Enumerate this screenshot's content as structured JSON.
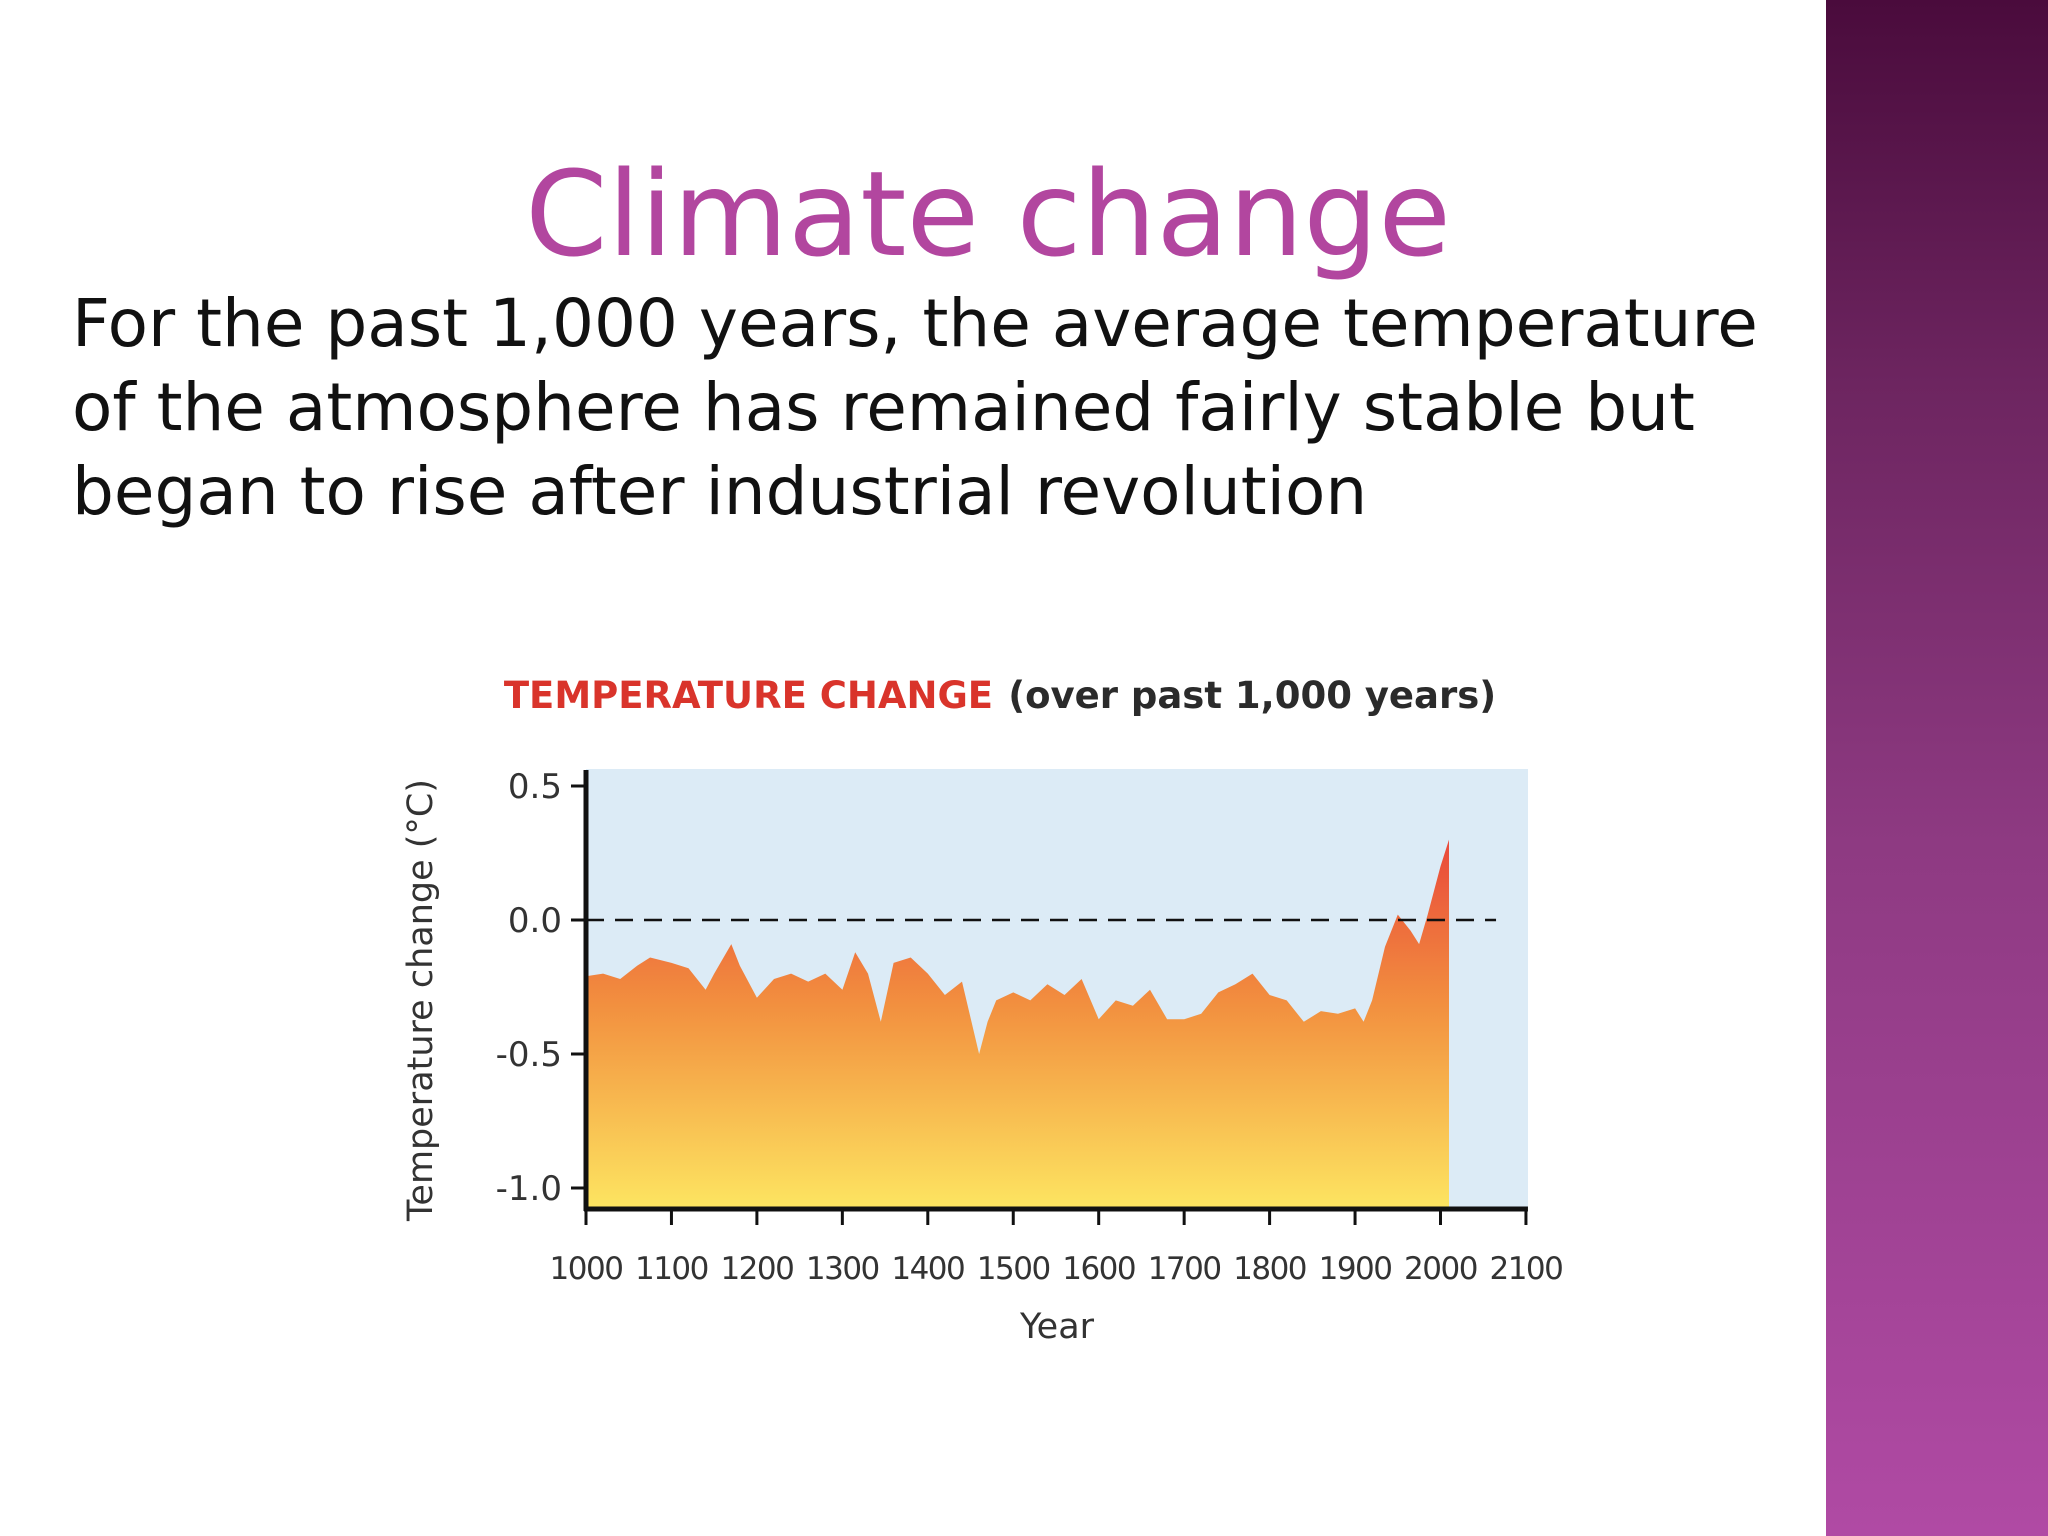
{
  "slide": {
    "title": "Climate change",
    "body": "For the past 1,000 years, the average temperature of the atmosphere has remained fairly stable but began to rise after industrial revolution"
  },
  "colors": {
    "title": "#b2469f",
    "plot_background": "#dcebf6",
    "fill_top": "#e9483a",
    "fill_mid": "#f2903f",
    "fill_bottom": "#fde561",
    "sidebar_top": "#4a0b3c",
    "sidebar_bottom": "#b04aa4"
  },
  "chart_data": {
    "type": "area",
    "title": "TEMPERATURE CHANGE",
    "subtitle": "(over past 1,000 years)",
    "xlabel": "Year",
    "ylabel": "Temperature change (°C)",
    "xlim": [
      1000,
      2100
    ],
    "ylim": [
      -1.0,
      0.5
    ],
    "xticks": [
      "1000",
      "1100",
      "1200",
      "1300",
      "1400",
      "1500",
      "1600",
      "1700",
      "1800",
      "1900",
      "2000",
      "2100"
    ],
    "yticks": [
      "0.5",
      "0.0",
      "-0.5",
      "-1.0"
    ],
    "reference_line": 0.0,
    "grid": false,
    "series": [
      {
        "x": [
          1000,
          1020,
          1040,
          1060,
          1075,
          1100,
          1120,
          1140,
          1150,
          1170,
          1180,
          1200,
          1220,
          1240,
          1260,
          1280,
          1300,
          1315,
          1330,
          1345,
          1360,
          1380,
          1400,
          1420,
          1440,
          1460,
          1470,
          1480,
          1500,
          1520,
          1540,
          1560,
          1580,
          1600,
          1620,
          1640,
          1660,
          1680,
          1700,
          1720,
          1740,
          1760,
          1780,
          1800,
          1820,
          1840,
          1860,
          1880,
          1900,
          1910,
          1920,
          1935,
          1950,
          1965,
          1975,
          1985,
          2000,
          2010
        ],
        "values": [
          -0.21,
          -0.2,
          -0.22,
          -0.17,
          -0.14,
          -0.16,
          -0.18,
          -0.26,
          -0.2,
          -0.09,
          -0.17,
          -0.29,
          -0.22,
          -0.2,
          -0.23,
          -0.2,
          -0.26,
          -0.12,
          -0.2,
          -0.38,
          -0.16,
          -0.14,
          -0.2,
          -0.28,
          -0.23,
          -0.5,
          -0.38,
          -0.3,
          -0.27,
          -0.3,
          -0.24,
          -0.28,
          -0.22,
          -0.37,
          -0.3,
          -0.32,
          -0.26,
          -0.37,
          -0.37,
          -0.35,
          -0.27,
          -0.24,
          -0.2,
          -0.28,
          -0.3,
          -0.38,
          -0.34,
          -0.35,
          -0.33,
          -0.38,
          -0.3,
          -0.1,
          0.02,
          -0.04,
          -0.09,
          0.02,
          0.2,
          0.3
        ]
      }
    ]
  }
}
